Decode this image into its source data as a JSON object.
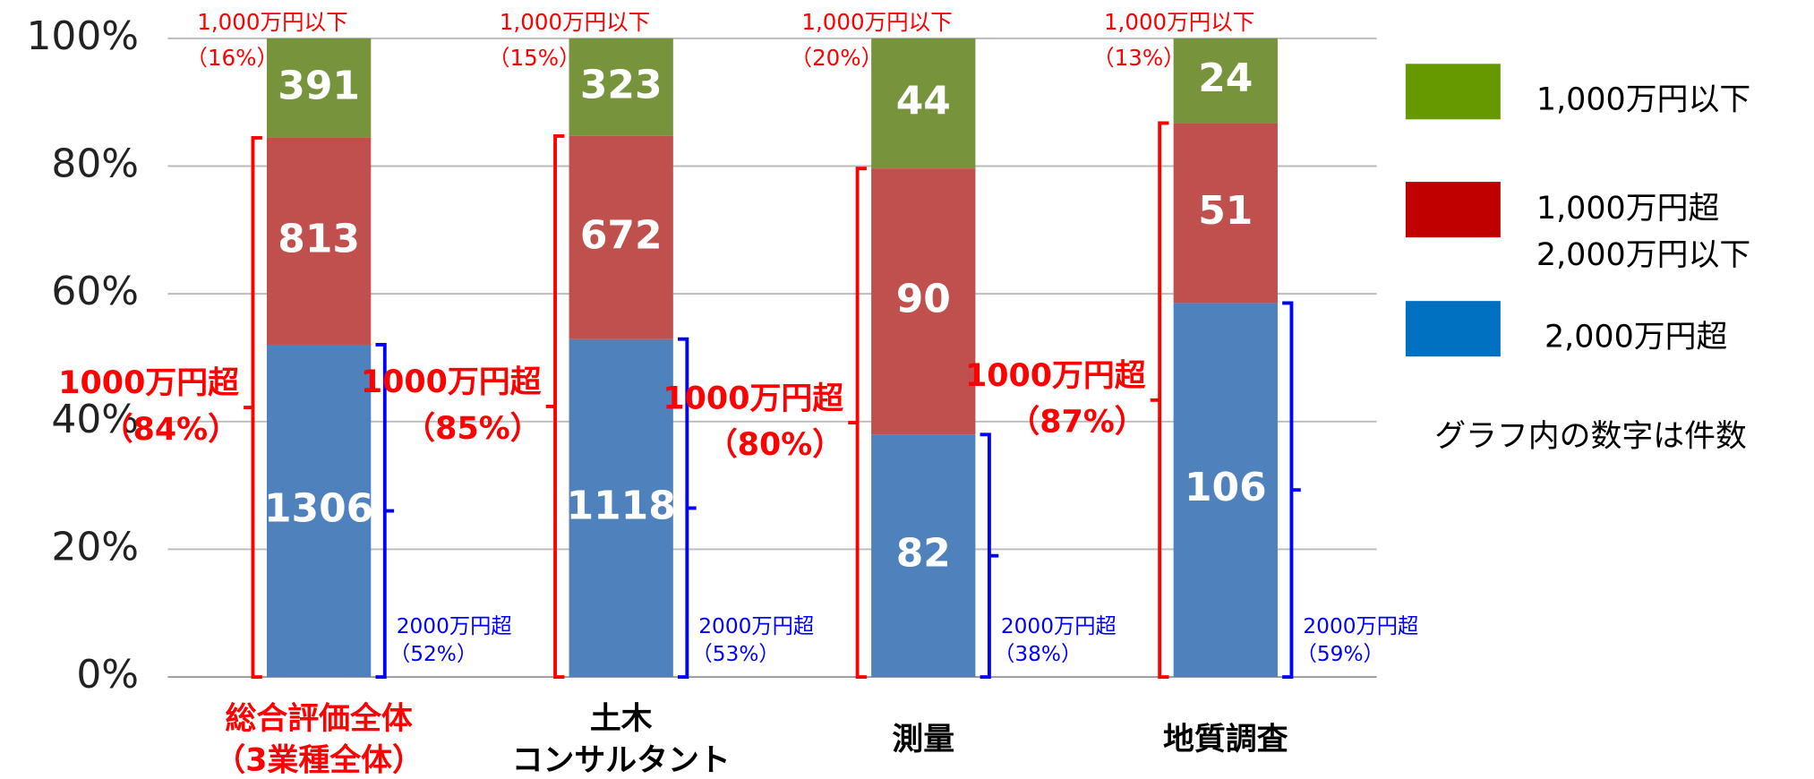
{
  "chart_data": {
    "type": "bar",
    "stacking": "percent",
    "categories": [
      "総合評価全体\n（3業種全体）",
      "土木\nコンサルタント",
      "測量",
      "地質調査"
    ],
    "category_label_colors": [
      "#ff0000",
      "#000000",
      "#000000",
      "#000000"
    ],
    "series": [
      {
        "name": "2,000万円超",
        "color": "#4f81bd",
        "legend_color": "#0070c0",
        "values": [
          1306,
          1118,
          82,
          106
        ]
      },
      {
        "name": "1,000万円超\n2,000万円以下",
        "color": "#c0504d",
        "legend_color": "#c00000",
        "values": [
          813,
          672,
          90,
          51
        ]
      },
      {
        "name": "1,000万円以下",
        "color": "#77933c",
        "legend_color": "#669900",
        "values": [
          391,
          323,
          44,
          24
        ]
      }
    ],
    "ylim": [
      0,
      100
    ],
    "yticks": [
      {
        "value": 0,
        "label": "0%"
      },
      {
        "value": 20,
        "label": "20%"
      },
      {
        "value": 40,
        "label": "40%"
      },
      {
        "value": 60,
        "label": "60%"
      },
      {
        "value": 80,
        "label": "80%"
      },
      {
        "value": 100,
        "label": "100%"
      }
    ],
    "grid": true,
    "annotations": [
      {
        "top": [
          "1,000万円以下",
          "（16%）"
        ],
        "over": [
          "1000万円超",
          "（84%）"
        ],
        "high": [
          "2000万円超",
          "（52%）"
        ]
      },
      {
        "top": [
          "1,000万円以下",
          "（15%）"
        ],
        "over": [
          "1000万円超",
          "（85%）"
        ],
        "high": [
          "2000万円超",
          "（53%）"
        ]
      },
      {
        "top": [
          "1,000万円以下",
          "（20%）"
        ],
        "over": [
          "1000万円超",
          "（80%）"
        ],
        "high": [
          "2000万円超",
          "（38%）"
        ]
      },
      {
        "top": [
          "1,000万円以下",
          "（13%）"
        ],
        "over": [
          "1000万円超",
          "（87%）"
        ],
        "high": [
          "2000万円超",
          "（59%）"
        ]
      }
    ],
    "note": "グラフ内の数字は件数"
  }
}
